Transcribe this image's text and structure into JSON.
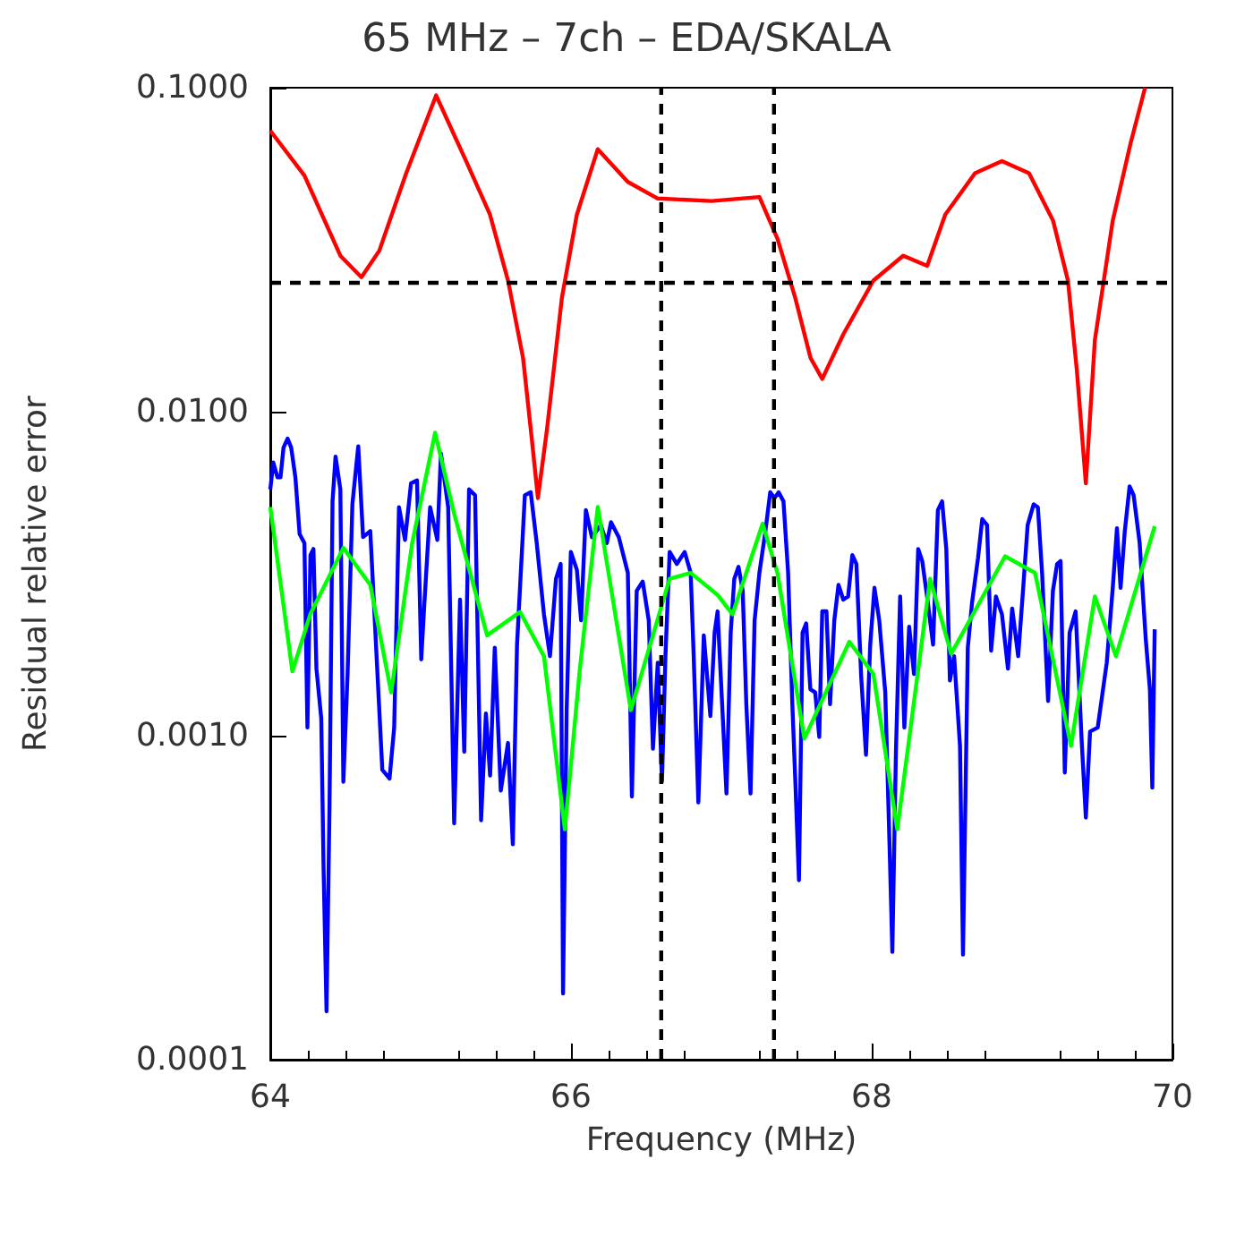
{
  "chart_data": {
    "type": "line",
    "title": "65 MHz – 7ch – EDA/SKALA",
    "xlabel": "Frequency (MHz)",
    "ylabel": "Residual relative error",
    "log": "y",
    "xlim": [
      64,
      70
    ],
    "xticks": [
      64,
      66,
      68,
      70
    ],
    "ylim": [
      0.0001,
      0.1
    ],
    "yticks": [
      {
        "value": 0.0001,
        "label": "0.0001"
      },
      {
        "value": 0.001,
        "label": "0.0010"
      },
      {
        "value": 0.01,
        "label": "0.0100"
      },
      {
        "value": 0.1,
        "label": "0.1000"
      }
    ],
    "series": [
      {
        "color": "#0000ff",
        "x": [
          64.0,
          64.02,
          64.048,
          64.068,
          64.088,
          64.115,
          64.139,
          64.167,
          64.195,
          64.227,
          64.247,
          64.267,
          64.287,
          64.307,
          64.339,
          64.354,
          64.374,
          64.394,
          64.414,
          64.434,
          64.466,
          64.486,
          64.514,
          64.546,
          64.585,
          64.617,
          64.665,
          64.745,
          64.793,
          64.824,
          64.856,
          64.896,
          64.936,
          64.976,
          65.004,
          65.024,
          65.063,
          65.111,
          65.135,
          65.183,
          65.223,
          65.262,
          65.29,
          65.322,
          65.362,
          65.402,
          65.434,
          65.462,
          65.493,
          65.533,
          65.581,
          65.613,
          65.641,
          65.693,
          65.732,
          65.772,
          65.82,
          65.86,
          65.9,
          65.931,
          65.947,
          65.971,
          65.999,
          66.039,
          66.067,
          66.099,
          66.139,
          66.198,
          66.238,
          66.266,
          66.318,
          66.378,
          66.405,
          66.437,
          66.477,
          66.517,
          66.545,
          66.577,
          66.605,
          66.628,
          66.656,
          66.704,
          66.756,
          66.796,
          66.816,
          66.847,
          66.883,
          66.927,
          66.955,
          66.975,
          67.034,
          67.062,
          67.086,
          67.114,
          67.142,
          67.166,
          67.194,
          67.221,
          67.253,
          67.293,
          67.325,
          67.353,
          67.381,
          67.413,
          67.444,
          67.472,
          67.492,
          67.516,
          67.54,
          67.564,
          67.592,
          67.624,
          67.651,
          67.671,
          67.699,
          67.723,
          67.751,
          67.779,
          67.811,
          67.843,
          67.871,
          67.898,
          67.93,
          67.962,
          67.99,
          68.018,
          68.05,
          68.09,
          68.121,
          68.137,
          68.161,
          68.189,
          68.217,
          68.249,
          68.281,
          68.309,
          68.336,
          68.368,
          68.408,
          68.44,
          68.468,
          68.496,
          68.52,
          68.548,
          68.587,
          68.607,
          68.639,
          68.667,
          68.707,
          68.735,
          68.767,
          68.794,
          68.826,
          68.866,
          68.906,
          68.934,
          68.974,
          69.006,
          69.037,
          69.077,
          69.105,
          69.133,
          69.173,
          69.205,
          69.233,
          69.256,
          69.284,
          69.316,
          69.356,
          69.396,
          69.424,
          69.452,
          69.503,
          69.563,
          69.603,
          69.631,
          69.655,
          69.683,
          69.715,
          69.742,
          69.782,
          69.822,
          69.85,
          69.866,
          69.882
        ],
        "values": [
          0.00576,
          0.00697,
          0.00627,
          0.00627,
          0.00775,
          0.00826,
          0.00775,
          0.00627,
          0.00419,
          0.00393,
          0.00106,
          0.00361,
          0.00377,
          0.00161,
          0.00113,
          0.000398,
          0.000141,
          0.000609,
          0.00529,
          0.00727,
          0.00576,
          0.000721,
          0.00155,
          0.00518,
          0.00782,
          0.0041,
          0.00428,
          0.000785,
          0.000737,
          0.00106,
          0.00507,
          0.00402,
          0.00601,
          0.00614,
          0.00172,
          0.00252,
          0.00507,
          0.00402,
          0.00743,
          0.00507,
          0.000536,
          0.00263,
          0.000892,
          0.00576,
          0.00552,
          0.000548,
          0.00117,
          0.000753,
          0.00187,
          0.000677,
          0.00095,
          0.000462,
          0.00191,
          0.00552,
          0.00564,
          0.00393,
          0.00237,
          0.00176,
          0.00305,
          0.00339,
          0.00016,
          0.0012,
          0.00369,
          0.00325,
          0.00227,
          0.00497,
          0.0041,
          0.00447,
          0.00393,
          0.00456,
          0.0041,
          0.00318,
          0.000649,
          0.0028,
          0.00299,
          0.00227,
          0.000911,
          0.00168,
          0.000721,
          0.00176,
          0.00369,
          0.00339,
          0.00369,
          0.00318,
          0.00176,
          0.000622,
          0.00204,
          0.00115,
          0.00208,
          0.00242,
          0.000663,
          0.00208,
          0.00305,
          0.00332,
          0.0028,
          0.00125,
          0.000663,
          0.00227,
          0.00318,
          0.00428,
          0.00564,
          0.00541,
          0.00564,
          0.00529,
          0.00318,
          0.00125,
          0.000721,
          0.000358,
          0.00208,
          0.00222,
          0.00139,
          0.00136,
          0.000991,
          0.00242,
          0.00242,
          0.00125,
          0.00227,
          0.00292,
          0.00263,
          0.00269,
          0.00361,
          0.00339,
          0.00152,
          0.000873,
          0.00191,
          0.00286,
          0.00227,
          0.00136,
          0.000416,
          0.000215,
          0.000892,
          0.00269,
          0.00106,
          0.00217,
          0.00155,
          0.00377,
          0.00346,
          0.00269,
          0.00191,
          0.00497,
          0.00529,
          0.00377,
          0.00148,
          0.00176,
          0.00093,
          0.000211,
          0.00187,
          0.00257,
          0.00354,
          0.00466,
          0.00447,
          0.00183,
          0.00269,
          0.00237,
          0.00161,
          0.00247,
          0.00176,
          0.0028,
          0.00447,
          0.00518,
          0.00507,
          0.00318,
          0.00128,
          0.0028,
          0.00339,
          0.00346,
          0.000769,
          0.00208,
          0.00242,
          0.000971,
          0.000559,
          0.00103,
          0.00106,
          0.00168,
          0.00286,
          0.00437,
          0.00286,
          0.00428,
          0.00588,
          0.00552,
          0.00393,
          0.002,
          0.00139,
          0.000691,
          0.00213
        ]
      },
      {
        "color": "#00ff00",
        "x": [
          64.0,
          64.147,
          64.266,
          64.486,
          64.665,
          64.804,
          64.944,
          65.096,
          65.222,
          65.442,
          65.661,
          65.82,
          65.959,
          66.059,
          66.178,
          66.398,
          66.656,
          66.796,
          66.975,
          67.074,
          67.274,
          67.373,
          67.552,
          67.851,
          68.011,
          68.17,
          68.388,
          68.528,
          68.887,
          69.086,
          69.325,
          69.484,
          69.624,
          69.882
        ],
        "values": [
          0.00508,
          0.00158,
          0.00237,
          0.0038,
          0.00292,
          0.00136,
          0.00394,
          0.00861,
          0.00486,
          0.00204,
          0.00241,
          0.00176,
          0.000514,
          0.00161,
          0.00508,
          0.0012,
          0.00305,
          0.00318,
          0.00272,
          0.00237,
          0.00451,
          0.00318,
          0.00098,
          0.00195,
          0.00155,
          0.000514,
          0.00305,
          0.00179,
          0.00358,
          0.00318,
          0.00093,
          0.00269,
          0.00176,
          0.00443
        ]
      },
      {
        "color": "#ff0000",
        "x": [
          64.0,
          64.227,
          64.466,
          64.606,
          64.725,
          64.904,
          65.103,
          65.302,
          65.461,
          65.581,
          65.681,
          65.741,
          65.78,
          65.84,
          65.939,
          66.039,
          66.178,
          66.378,
          66.577,
          66.935,
          67.253,
          67.373,
          67.492,
          67.593,
          67.671,
          67.811,
          68.011,
          68.209,
          68.369,
          68.489,
          68.687,
          68.866,
          69.046,
          69.206,
          69.305,
          69.364,
          69.424,
          69.484,
          69.603,
          69.722,
          69.818
        ],
        "values": [
          0.0737,
          0.0536,
          0.0303,
          0.026,
          0.0314,
          0.0545,
          0.0947,
          0.0594,
          0.0406,
          0.0254,
          0.01466,
          0.00809,
          0.00541,
          0.00881,
          0.0224,
          0.0406,
          0.0646,
          0.0512,
          0.0455,
          0.0447,
          0.046,
          0.0342,
          0.0224,
          0.01466,
          0.01262,
          0.01734,
          0.0254,
          0.0303,
          0.0282,
          0.0406,
          0.0545,
          0.0594,
          0.0545,
          0.0389,
          0.0254,
          0.01346,
          0.00601,
          0.01663,
          0.0389,
          0.0675,
          0.1
        ]
      }
    ],
    "ref_lines": [
      {
        "axis": "y",
        "value": 0.025,
        "color": "#000000",
        "line_style": "dashed"
      },
      {
        "axis": "x",
        "value": 66.6,
        "color": "#000000",
        "line_style": "dashed"
      },
      {
        "axis": "x",
        "value": 67.35,
        "color": "#000000",
        "line_style": "dashed"
      }
    ]
  }
}
